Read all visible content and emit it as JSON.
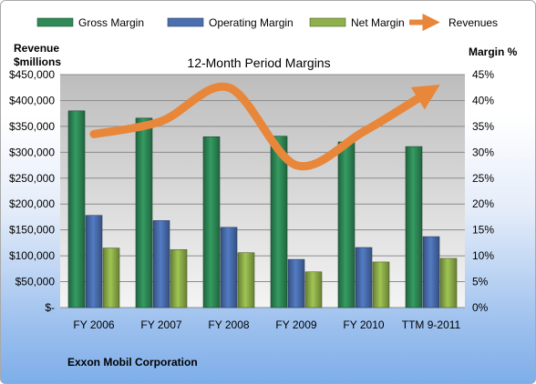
{
  "chart_data": {
    "type": "bar",
    "title": "12-Month Period Margins",
    "company": "Exxon Mobil Corporation",
    "y_left_title_line1": "Revenue",
    "y_left_title_line2": "$millions",
    "y_right_title": "Margin %",
    "y_left_ticks": [
      "$-",
      "$50,000",
      "$100,000",
      "$150,000",
      "$200,000",
      "$250,000",
      "$300,000",
      "$350,000",
      "$400,000",
      "$450,000"
    ],
    "y_right_ticks": [
      "0%",
      "5%",
      "10%",
      "15%",
      "20%",
      "25%",
      "30%",
      "35%",
      "40%",
      "45%"
    ],
    "ylim_left": [
      0,
      450000
    ],
    "ylim_right": [
      0,
      45
    ],
    "categories": [
      "FY 2006",
      "FY 2007",
      "FY 2008",
      "FY 2009",
      "FY 2010",
      "TTM 9-2011"
    ],
    "series": [
      {
        "name": "Gross Margin",
        "axis": "right",
        "kind": "bar",
        "color": "#2e8b57",
        "values": [
          38.0,
          36.6,
          33.0,
          33.1,
          32.0,
          31.1
        ]
      },
      {
        "name": "Operating Margin",
        "axis": "right",
        "kind": "bar",
        "color": "#4a6fb0",
        "values": [
          17.8,
          16.8,
          15.5,
          9.3,
          11.6,
          13.7
        ]
      },
      {
        "name": "Net Margin",
        "axis": "right",
        "kind": "bar",
        "color": "#8fb04a",
        "values": [
          11.5,
          11.2,
          10.6,
          6.9,
          8.8,
          9.5
        ]
      },
      {
        "name": "Revenues",
        "axis": "left",
        "kind": "line",
        "color": "#e8863a",
        "values": [
          335000,
          360000,
          425000,
          275000,
          340000,
          420000
        ]
      }
    ],
    "legend_position": "top",
    "grid": true
  }
}
